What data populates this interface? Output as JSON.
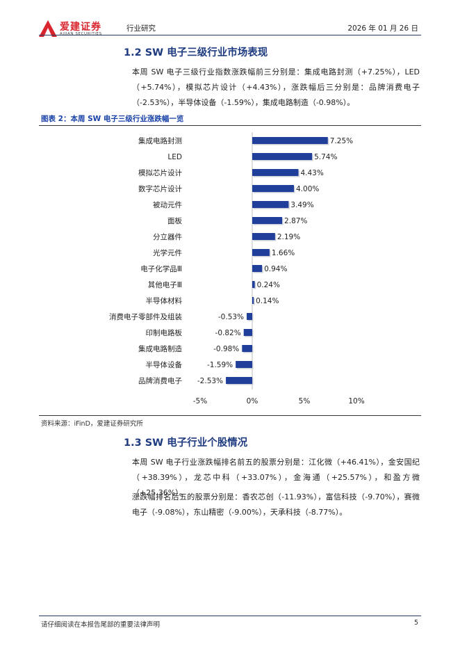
{
  "header": {
    "logo_cn": "爱建证券",
    "logo_en": "AIJIAN SECURITIES",
    "category": "行业研究",
    "date": "2026 年 01 月 26 日"
  },
  "section1": {
    "title": "1.2 SW 电子三级行业市场表现",
    "paragraph": "本周 SW 电子三级行业指数涨跌幅前三分别是：集成电路封测（+7.25%），LED（+5.74%），模拟芯片设计（+4.43%），涨跌幅后三分别是：品牌消费电子（-2.53%），半导体设备（-1.59%），集成电路制造（-0.98%）。"
  },
  "figure": {
    "title": "图表 2：本周 SW 电子三级行业涨跌幅一览",
    "source": "资料来源：iFinD，爱建证券研究所"
  },
  "chart_data": {
    "type": "bar",
    "orientation": "horizontal",
    "title": "",
    "categories": [
      "集成电路封测",
      "LED",
      "模拟芯片设计",
      "数字芯片设计",
      "被动元件",
      "面板",
      "分立器件",
      "光学元件",
      "电子化学品Ⅲ",
      "其他电子Ⅲ",
      "半导体材料",
      "消费电子零部件及组装",
      "印制电路板",
      "集成电路制造",
      "半导体设备",
      "品牌消费电子"
    ],
    "values": [
      7.25,
      5.74,
      4.43,
      4.0,
      3.49,
      2.87,
      2.19,
      1.66,
      0.94,
      0.24,
      0.14,
      -0.53,
      -0.82,
      -0.98,
      -1.59,
      -2.53
    ],
    "labels": [
      "7.25%",
      "5.74%",
      "4.43%",
      "4.00%",
      "3.49%",
      "2.87%",
      "2.19%",
      "1.66%",
      "0.94%",
      "0.24%",
      "0.14%",
      "-0.53%",
      "-0.82%",
      "-0.98%",
      "-1.59%",
      "-2.53%"
    ],
    "xlim": [
      -5,
      10
    ],
    "xticks": [
      -5,
      0,
      5,
      10
    ],
    "xtick_labels": [
      "-5%",
      "0%",
      "5%",
      "10%"
    ],
    "bar_color": "#1f3f9a",
    "grid": false
  },
  "section2": {
    "title": "1.3 SW 电子行业个股情况",
    "paragraph1": "本周 SW 电子行业涨跌幅排名前五的股票分别是：江化微（+46.41%），金安国纪（+38.39%），龙芯中科（+33.07%），金海通（+25.57%），和盈方微（+25.36%）。",
    "paragraph2": "涨跌幅排名后五的股票分别是：香农芯创（-11.93%），富信科技（-9.70%），赛微电子（-9.08%），东山精密（-9.00%），天承科技（-8.77%）。"
  },
  "footer": {
    "disclaimer": "请仔细阅读在本报告尾部的重要法律声明",
    "page": "5"
  },
  "colors": {
    "brand_red": "#d9252e",
    "heading_blue": "#1f3b80",
    "figure_title_blue": "#1a43a8"
  }
}
